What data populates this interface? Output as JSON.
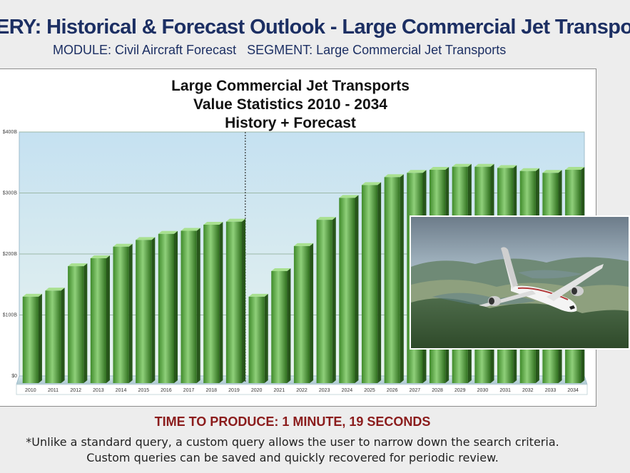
{
  "header": {
    "title": "ERY: Historical & Forecast Outlook - Large Commercial Jet Transports",
    "module_label": "MODULE:",
    "module_value": "Civil Aircraft Forecast",
    "segment_label": "SEGMENT:",
    "segment_value": "Large Commercial Jet Transports"
  },
  "chart_data": {
    "type": "bar",
    "title_lines": [
      "Large Commercial Jet Transports",
      "Value Statistics 2010 - 2034",
      "History + Forecast"
    ],
    "categories": [
      "2010",
      "2011",
      "2012",
      "2013",
      "2014",
      "2015",
      "2016",
      "2017",
      "2018",
      "2019",
      "2020",
      "2021",
      "2022",
      "2023",
      "2024",
      "2025",
      "2026",
      "2027",
      "2028",
      "2029",
      "2030",
      "2031",
      "2032",
      "2033",
      "2034"
    ],
    "values": [
      130,
      140,
      180,
      193,
      212,
      223,
      233,
      238,
      248,
      253,
      130,
      172,
      213,
      256,
      292,
      313,
      326,
      333,
      338,
      343,
      343,
      341,
      336,
      333,
      338
    ],
    "ylim": [
      0,
      400
    ],
    "yticks": [
      0,
      100,
      200,
      300,
      400
    ],
    "ytick_labels": [
      "$0",
      "$100B",
      "$200B",
      "$300B",
      "$400B"
    ],
    "divider_after": "2019",
    "grid": true,
    "colors": {
      "bar_light": "#8fd07a",
      "bar_dark": "#2f6f1e",
      "plot_top": "#c5e1f1",
      "plot_bottom": "#e6f2f0"
    }
  },
  "photo": {
    "icon": "airplane-photo"
  },
  "footer": {
    "time_line": "TIME TO PRODUCE: 1 MINUTE, 19 SECONDS",
    "note_line_1": "*Unlike a standard query, a custom query allows the user to narrow down the search criteria.",
    "note_line_2": "Custom queries can be saved and quickly recovered for periodic review."
  }
}
